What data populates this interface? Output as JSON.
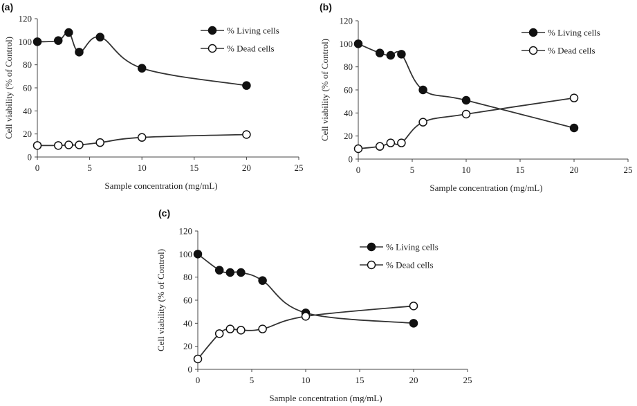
{
  "chart_data": [
    {
      "panel_label": "(a)",
      "type": "line",
      "xlabel": "Sample concentration (mg/mL)",
      "ylabel": "Cell viability (% of Control)",
      "xlim": [
        0,
        25
      ],
      "ylim": [
        0,
        120
      ],
      "xticks": [
        "0",
        "5",
        "10",
        "15",
        "20",
        "25"
      ],
      "yticks": [
        "0",
        "20",
        "40",
        "60",
        "80",
        "100",
        "120"
      ],
      "grid": false,
      "legend_position": "top-right",
      "x": [
        0,
        2,
        3,
        4,
        6,
        10,
        20
      ],
      "series": [
        {
          "name": "% Living cells",
          "marker": "filled-circle",
          "values": [
            100,
            101,
            108,
            91,
            104,
            77,
            62
          ]
        },
        {
          "name": "% Dead cells",
          "marker": "open-circle",
          "values": [
            10,
            10,
            10.5,
            10.5,
            12.5,
            17,
            19.5
          ]
        }
      ]
    },
    {
      "panel_label": "(b)",
      "type": "line",
      "xlabel": "Sample concentration (mg/mL)",
      "ylabel": "Cell viability (% of Control)",
      "xlim": [
        0,
        25
      ],
      "ylim": [
        0,
        120
      ],
      "xticks": [
        "0",
        "5",
        "10",
        "15",
        "20",
        "25"
      ],
      "yticks": [
        "0",
        "20",
        "40",
        "60",
        "80",
        "100",
        "120"
      ],
      "grid": false,
      "legend_position": "top-right",
      "x": [
        0,
        2,
        3,
        4,
        6,
        10,
        20
      ],
      "series": [
        {
          "name": "% Living cells",
          "marker": "filled-circle",
          "values": [
            100,
            92,
            90,
            91,
            60,
            51,
            27
          ]
        },
        {
          "name": "% Dead cells",
          "marker": "open-circle",
          "values": [
            9,
            11,
            14,
            14,
            32,
            39,
            53
          ]
        }
      ]
    },
    {
      "panel_label": "(c)",
      "type": "line",
      "xlabel": "Sample concentration (mg/mL)",
      "ylabel": "Cell viability (% of Control)",
      "xlim": [
        0,
        25
      ],
      "ylim": [
        0,
        120
      ],
      "xticks": [
        "0",
        "5",
        "10",
        "15",
        "20",
        "25"
      ],
      "yticks": [
        "0",
        "20",
        "40",
        "60",
        "80",
        "100",
        "120"
      ],
      "grid": false,
      "legend_position": "top-right",
      "x": [
        0,
        2,
        3,
        4,
        6,
        10,
        20
      ],
      "series": [
        {
          "name": "% Living cells",
          "marker": "filled-circle",
          "values": [
            100,
            86,
            84,
            84,
            77,
            49,
            40
          ]
        },
        {
          "name": "% Dead cells",
          "marker": "open-circle",
          "values": [
            9,
            31,
            35,
            34,
            35,
            46,
            55
          ]
        }
      ]
    }
  ]
}
